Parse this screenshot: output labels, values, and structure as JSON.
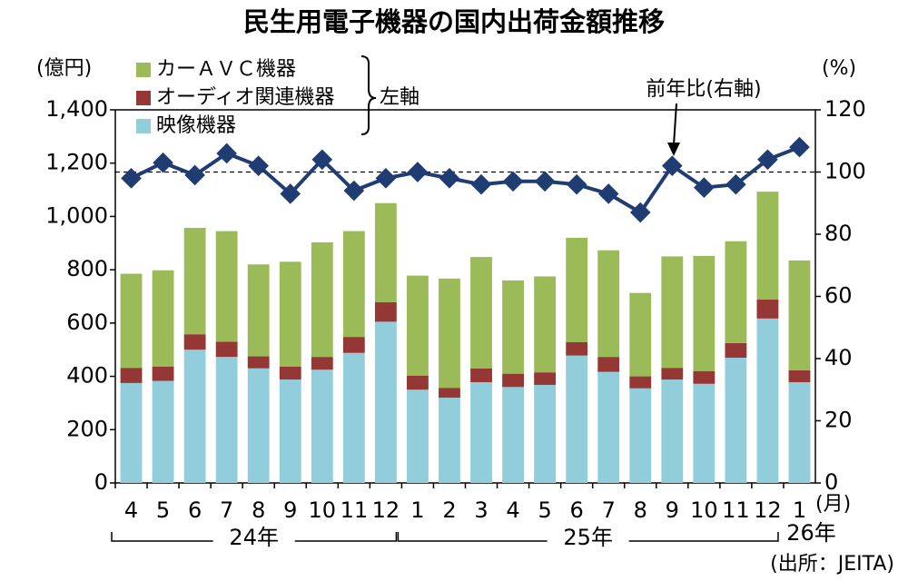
{
  "chart_data": {
    "type": "bar-line",
    "title": "民生用電子機器の国内出荷金額推移",
    "y_label": "(億円)",
    "y2_label": "(%)",
    "x_label": "(月)",
    "categories": [
      "4",
      "5",
      "6",
      "7",
      "8",
      "9",
      "10",
      "11",
      "12",
      "1",
      "2",
      "3",
      "4",
      "5",
      "6",
      "7",
      "8",
      "9",
      "10",
      "11",
      "12",
      "1"
    ],
    "x_groups": [
      "24年",
      "25年",
      "26年"
    ],
    "stacked": true,
    "series": [
      {
        "name": "映像機器",
        "color": "#92cddc",
        "values": [
          375,
          383,
          500,
          473,
          430,
          388,
          425,
          488,
          605,
          350,
          320,
          378,
          360,
          368,
          478,
          417,
          355,
          388,
          372,
          470,
          617,
          378
        ]
      },
      {
        "name": "オーディオ関連機器",
        "color": "#953735",
        "values": [
          57,
          54,
          58,
          57,
          45,
          49,
          48,
          60,
          73,
          53,
          37,
          52,
          50,
          47,
          50,
          56,
          45,
          44,
          48,
          55,
          71,
          45
        ]
      },
      {
        "name": "カーＡＶＣ機器",
        "color": "#9bbb59",
        "values": [
          353,
          361,
          399,
          415,
          345,
          393,
          430,
          397,
          372,
          375,
          410,
          418,
          350,
          360,
          392,
          400,
          313,
          418,
          432,
          382,
          405,
          412
        ]
      },
      {
        "name": "前年比",
        "type": "line",
        "axis": "y2",
        "color": "#1f3c73",
        "values": [
          98,
          103,
          99,
          106,
          102,
          93,
          104,
          94,
          98,
          100,
          98,
          96,
          97,
          97,
          96,
          93,
          87,
          102,
          95,
          96,
          104,
          108
        ]
      }
    ],
    "legend_group_label": "左軸",
    "annotation": "前年比(右軸)",
    "reference_line": {
      "axis": "y2",
      "value": 100
    },
    "ylim": [
      0,
      1400
    ],
    "yticks": [
      0,
      200,
      400,
      600,
      800,
      {
        "value": 1000,
        "label": "1,000"
      },
      {
        "value": 1200,
        "label": "1,200"
      },
      {
        "value": 1400,
        "label": "1,400"
      }
    ],
    "y2lim": [
      0,
      120
    ],
    "y2ticks": [
      0,
      20,
      40,
      60,
      80,
      100,
      120
    ],
    "source": "(出所：JEITA)",
    "legend_position": "upper left"
  }
}
